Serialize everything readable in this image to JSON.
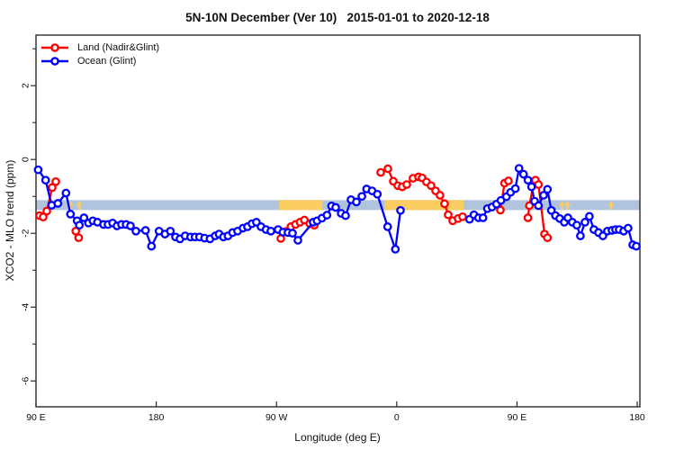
{
  "chart_data": {
    "type": "line",
    "title": "5N-10N December (Ver 10)   2015-01-01 to 2020-12-18",
    "xlabel": "Longitude (deg E)",
    "ylabel": "XCO2 - MLO trend (ppm)",
    "xlim": [
      90,
      542
    ],
    "ylim": [
      -6.7,
      3.37
    ],
    "grid": false,
    "legend_position": "top-left",
    "x_ticks": [
      {
        "pos": 90,
        "label": "90 E"
      },
      {
        "pos": 180,
        "label": "180"
      },
      {
        "pos": 270,
        "label": "90 W"
      },
      {
        "pos": 360,
        "label": "0"
      },
      {
        "pos": 450,
        "label": "90 E"
      },
      {
        "pos": 540,
        "label": "180"
      }
    ],
    "y_ticks": [
      {
        "v": 2,
        "label": "2"
      },
      {
        "v": 0,
        "label": "0"
      },
      {
        "v": -2,
        "label": "-2"
      },
      {
        "v": -4,
        "label": "-4"
      },
      {
        "v": -6,
        "label": "-6"
      }
    ],
    "y_minor_ticks": [
      3,
      1,
      -1,
      -3,
      -5
    ],
    "reference_band": {
      "y_from": -1.37,
      "y_to": -1.1,
      "color": "#B0C4DE"
    },
    "highlight_color": "#FACD60",
    "highlight_segments": [
      {
        "x_from": 272.0,
        "x_to": 304.4
      },
      {
        "x_from": 350.9,
        "x_to": 410.2
      }
    ],
    "highlight_arrows": [
      115.6,
      122.4,
      483.7,
      487.7,
      520.5
    ],
    "series": [
      {
        "name": "Land (Nadir&Glint)",
        "color": "#FF0000",
        "segments": [
          [
            [
              92.7,
              -1.52
            ],
            [
              95.4,
              -1.56
            ],
            [
              98.1,
              -1.4
            ],
            [
              102.1,
              -0.76
            ],
            [
              104.8,
              -0.6
            ]
          ],
          [
            [
              119.8,
              -1.94
            ],
            [
              121.9,
              -2.12
            ]
          ],
          [
            [
              273.2,
              -2.14
            ],
            [
              277.2,
              -1.95
            ],
            [
              280.8,
              -1.82
            ],
            [
              284.2,
              -1.76
            ],
            [
              287.6,
              -1.7
            ],
            [
              290.9,
              -1.64
            ],
            [
              295.0,
              -1.74
            ],
            [
              298.3,
              -1.78
            ]
          ],
          [
            [
              348.0,
              -0.35
            ],
            [
              353.4,
              -0.25
            ],
            [
              357.4,
              -0.59
            ],
            [
              360.8,
              -0.71
            ],
            [
              364.1,
              -0.74
            ],
            [
              367.5,
              -0.68
            ],
            [
              372.2,
              -0.51
            ],
            [
              376.3,
              -0.47
            ],
            [
              379.0,
              -0.5
            ],
            [
              382.3,
              -0.61
            ],
            [
              385.7,
              -0.71
            ],
            [
              389.1,
              -0.85
            ],
            [
              392.4,
              -0.97
            ],
            [
              395.8,
              -1.2
            ],
            [
              398.5,
              -1.5
            ],
            [
              401.9,
              -1.66
            ],
            [
              405.9,
              -1.6
            ],
            [
              409.3,
              -1.55
            ]
          ],
          [
            [
              437.6,
              -1.37
            ],
            [
              440.7,
              -0.64
            ],
            [
              443.6,
              -0.58
            ]
          ],
          [
            [
              458.2,
              -1.58
            ],
            [
              459.3,
              -1.25
            ],
            [
              462.7,
              -0.6
            ],
            [
              463.8,
              -0.56
            ],
            [
              466.1,
              -0.68
            ],
            [
              470.6,
              -2.02
            ],
            [
              472.8,
              -2.12
            ]
          ]
        ]
      },
      {
        "name": "Ocean (Glint)",
        "color": "#0000FF",
        "segments": [
          [
            [
              91.6,
              -0.28
            ],
            [
              97.2,
              -0.56
            ],
            [
              101.7,
              -1.24
            ],
            [
              106.4,
              -1.19
            ],
            [
              112.4,
              -0.91
            ],
            [
              115.8,
              -1.48
            ],
            [
              120.8,
              -1.66
            ],
            [
              122.5,
              -1.78
            ],
            [
              125.9,
              -1.58
            ],
            [
              129.3,
              -1.72
            ],
            [
              132.6,
              -1.66
            ],
            [
              136.0,
              -1.7
            ],
            [
              140.5,
              -1.76
            ],
            [
              143.9,
              -1.76
            ],
            [
              147.3,
              -1.72
            ],
            [
              150.6,
              -1.8
            ],
            [
              154.0,
              -1.76
            ],
            [
              157.4,
              -1.76
            ],
            [
              160.7,
              -1.8
            ],
            [
              164.8,
              -1.94
            ],
            [
              172.0,
              -1.92
            ],
            [
              176.4,
              -2.35
            ],
            [
              182.1,
              -1.94
            ],
            [
              186.5,
              -2.02
            ],
            [
              190.6,
              -1.94
            ],
            [
              194.4,
              -2.1
            ],
            [
              197.8,
              -2.15
            ],
            [
              201.6,
              -2.07
            ],
            [
              205.7,
              -2.1
            ],
            [
              209.0,
              -2.1
            ],
            [
              212.4,
              -2.1
            ],
            [
              216.2,
              -2.13
            ],
            [
              220.2,
              -2.15
            ],
            [
              224.1,
              -2.07
            ],
            [
              227.0,
              -2.02
            ],
            [
              230.3,
              -2.1
            ],
            [
              233.7,
              -2.07
            ],
            [
              237.1,
              -1.98
            ],
            [
              240.9,
              -1.94
            ],
            [
              244.9,
              -1.86
            ],
            [
              248.3,
              -1.82
            ],
            [
              251.7,
              -1.74
            ],
            [
              255.0,
              -1.7
            ],
            [
              258.4,
              -1.82
            ],
            [
              262.2,
              -1.9
            ],
            [
              265.8,
              -1.94
            ],
            [
              271.2,
              -1.9
            ],
            [
              274.8,
              -1.97
            ],
            [
              278.6,
              -1.98
            ],
            [
              282.0,
              -2.0
            ],
            [
              286.0,
              -2.19
            ],
            [
              297.5,
              -1.7
            ],
            [
              300.4,
              -1.66
            ],
            [
              304.0,
              -1.59
            ],
            [
              307.8,
              -1.51
            ],
            [
              311.2,
              -1.26
            ],
            [
              314.3,
              -1.3
            ],
            [
              318.4,
              -1.46
            ],
            [
              321.7,
              -1.52
            ],
            [
              325.8,
              -1.09
            ],
            [
              329.8,
              -1.15
            ],
            [
              333.9,
              -1.0
            ],
            [
              337.4,
              -0.8
            ],
            [
              341.5,
              -0.85
            ],
            [
              345.5,
              -0.94
            ],
            [
              353.2,
              -1.82
            ],
            [
              359.0,
              -2.43
            ],
            [
              362.8,
              -1.38
            ]
          ],
          [
            [
              414.5,
              -1.62
            ],
            [
              417.8,
              -1.5
            ],
            [
              421.2,
              -1.58
            ],
            [
              424.6,
              -1.58
            ],
            [
              427.9,
              -1.33
            ],
            [
              431.3,
              -1.29
            ],
            [
              434.7,
              -1.21
            ],
            [
              438.0,
              -1.11
            ],
            [
              442.1,
              -1.01
            ],
            [
              445.2,
              -0.89
            ],
            [
              448.8,
              -0.79
            ],
            [
              451.5,
              -0.24
            ],
            [
              454.9,
              -0.4
            ],
            [
              458.2,
              -0.56
            ],
            [
              460.9,
              -0.74
            ],
            [
              463.2,
              -1.13
            ],
            [
              466.1,
              -1.25
            ],
            [
              469.9,
              -0.97
            ],
            [
              472.8,
              -0.81
            ],
            [
              475.7,
              -1.38
            ],
            [
              478.8,
              -1.52
            ],
            [
              482.0,
              -1.6
            ],
            [
              485.4,
              -1.7
            ],
            [
              488.1,
              -1.58
            ],
            [
              491.4,
              -1.7
            ],
            [
              494.8,
              -1.78
            ],
            [
              497.5,
              -2.07
            ],
            [
              500.9,
              -1.7
            ],
            [
              504.2,
              -1.54
            ],
            [
              507.6,
              -1.9
            ],
            [
              511.0,
              -1.98
            ],
            [
              514.3,
              -2.07
            ],
            [
              517.7,
              -1.94
            ],
            [
              521.1,
              -1.92
            ],
            [
              523.8,
              -1.9
            ],
            [
              526.5,
              -1.9
            ],
            [
              529.9,
              -1.94
            ],
            [
              533.2,
              -1.86
            ],
            [
              536.6,
              -2.31
            ],
            [
              539.3,
              -2.35
            ]
          ]
        ]
      }
    ]
  }
}
